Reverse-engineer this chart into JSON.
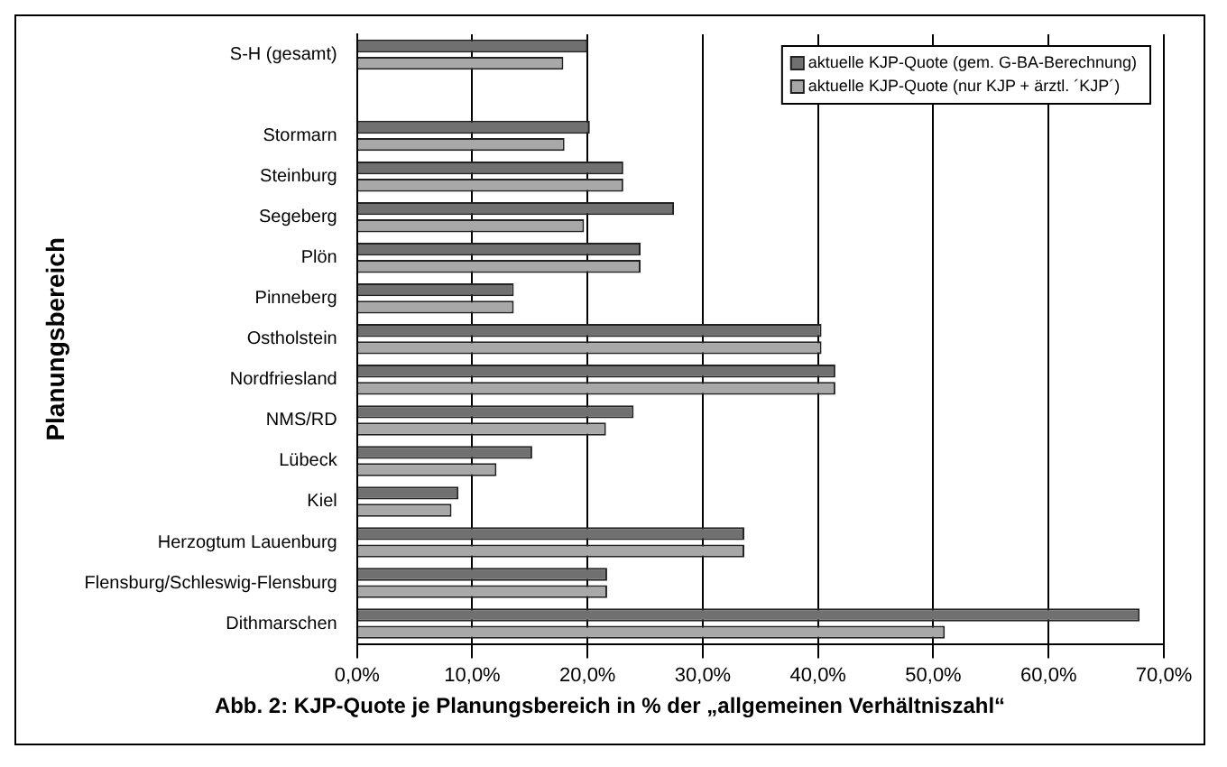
{
  "chart_data": {
    "type": "bar",
    "orientation": "horizontal",
    "title": "Abb. 2: KJP-Quote je Planungsbereich in % der „allgemeinen Verhältniszahl“",
    "ylabel": "Planungsbereich",
    "categories": [
      "S-H (gesamt)",
      null,
      "Stormarn",
      "Steinburg",
      "Segeberg",
      "Plön",
      "Pinneberg",
      "Ostholstein",
      "Nordfriesland",
      "NMS/RD",
      "Lübeck",
      "Kiel",
      "Herzogtum Lauenburg",
      "Flensburg/Schleswig-Flensburg",
      "Dithmarschen"
    ],
    "series": [
      {
        "name": "aktuelle KJP-Quote (gem. G-BA-Berechnung)",
        "color": "#707070",
        "values": [
          20.0,
          null,
          20.2,
          23.1,
          27.5,
          24.6,
          13.6,
          40.3,
          41.5,
          24.0,
          15.2,
          8.8,
          33.6,
          21.7,
          67.9
        ]
      },
      {
        "name": "aktuelle KJP-Quote (nur KJP + ärztl. ´KJP´)",
        "color": "#a8a8a8",
        "values": [
          17.9,
          null,
          18.0,
          23.1,
          19.7,
          24.6,
          13.6,
          40.3,
          41.5,
          21.6,
          12.1,
          8.2,
          33.6,
          21.7,
          51.0
        ]
      }
    ],
    "xlim": [
      0,
      70
    ],
    "xticks": [
      {
        "value": 0,
        "label": "0,0%"
      },
      {
        "value": 10,
        "label": "10,0%"
      },
      {
        "value": 20,
        "label": "20,0%"
      },
      {
        "value": 30,
        "label": "30,0%"
      },
      {
        "value": 40,
        "label": "40,0%"
      },
      {
        "value": 50,
        "label": "50,0%"
      },
      {
        "value": 60,
        "label": "60,0%"
      },
      {
        "value": 70,
        "label": "70,0%"
      }
    ],
    "grid": "x",
    "legend": "top right"
  }
}
